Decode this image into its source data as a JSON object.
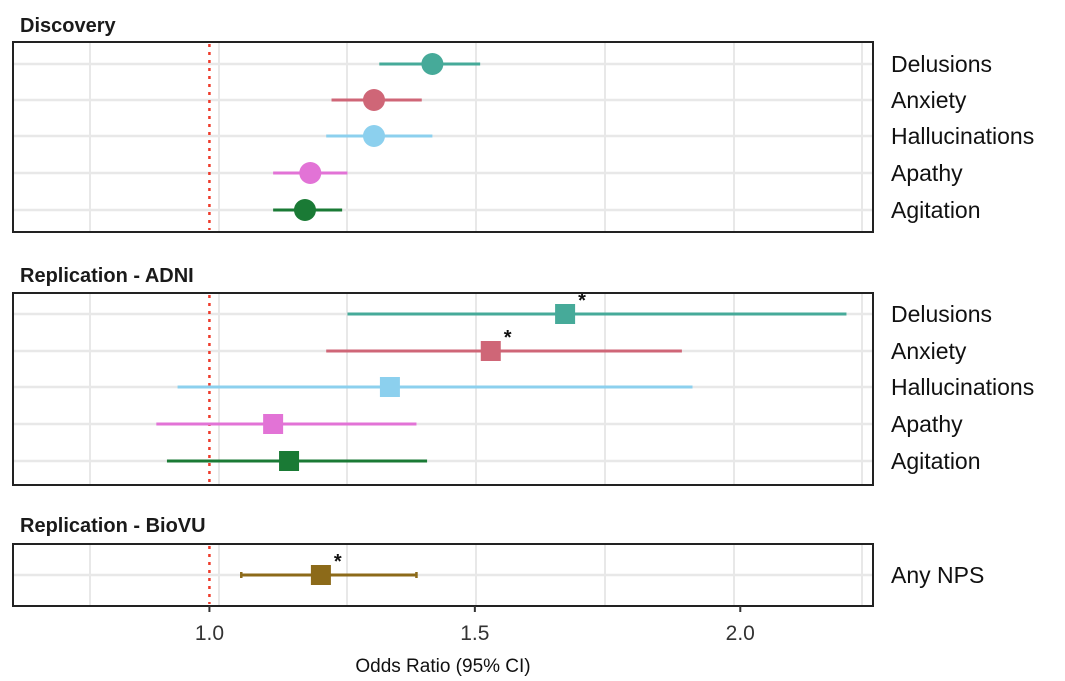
{
  "chart_data": {
    "type": "scatter",
    "subtype": "forest-plot",
    "xlabel": "Odds Ratio (95% CI)",
    "xlim": [
      0.63,
      2.25
    ],
    "xticks": [
      1.0,
      1.5,
      2.0
    ],
    "xtick_labels": [
      "1.0",
      "1.5",
      "2.0"
    ],
    "reference_line": 1.0,
    "reference_line_color": "#ee3b2b",
    "grid": true,
    "colors": {
      "Delusions": "#46aa99",
      "Anxiety": "#cf6677",
      "Hallucinations": "#8cd0ee",
      "Apathy": "#e273d6",
      "Agitation": "#1a7a35",
      "Any NPS": "#8c6a19"
    },
    "panels": [
      {
        "title": "Discovery",
        "marker": "circle",
        "rows": [
          {
            "label": "Delusions",
            "or": 1.42,
            "lo": 1.32,
            "hi": 1.51,
            "sig": false
          },
          {
            "label": "Anxiety",
            "or": 1.31,
            "lo": 1.23,
            "hi": 1.4,
            "sig": false
          },
          {
            "label": "Hallucinations",
            "or": 1.31,
            "lo": 1.22,
            "hi": 1.42,
            "sig": false
          },
          {
            "label": "Apathy",
            "or": 1.19,
            "lo": 1.12,
            "hi": 1.26,
            "sig": false
          },
          {
            "label": "Agitation",
            "or": 1.18,
            "lo": 1.12,
            "hi": 1.25,
            "sig": false
          }
        ]
      },
      {
        "title": "Replication - ADNI",
        "marker": "square",
        "rows": [
          {
            "label": "Delusions",
            "or": 1.67,
            "lo": 1.26,
            "hi": 2.2,
            "sig": true
          },
          {
            "label": "Anxiety",
            "or": 1.53,
            "lo": 1.22,
            "hi": 1.89,
            "sig": true
          },
          {
            "label": "Hallucinations",
            "or": 1.34,
            "lo": 0.94,
            "hi": 1.91,
            "sig": false
          },
          {
            "label": "Apathy",
            "or": 1.12,
            "lo": 0.9,
            "hi": 1.39,
            "sig": false
          },
          {
            "label": "Agitation",
            "or": 1.15,
            "lo": 0.92,
            "hi": 1.41,
            "sig": false
          }
        ]
      },
      {
        "title": "Replication - BioVU",
        "marker": "square",
        "rows": [
          {
            "label": "Any NPS",
            "or": 1.21,
            "lo": 1.06,
            "hi": 1.39,
            "sig": true
          }
        ]
      }
    ],
    "significance_marker": "*"
  }
}
